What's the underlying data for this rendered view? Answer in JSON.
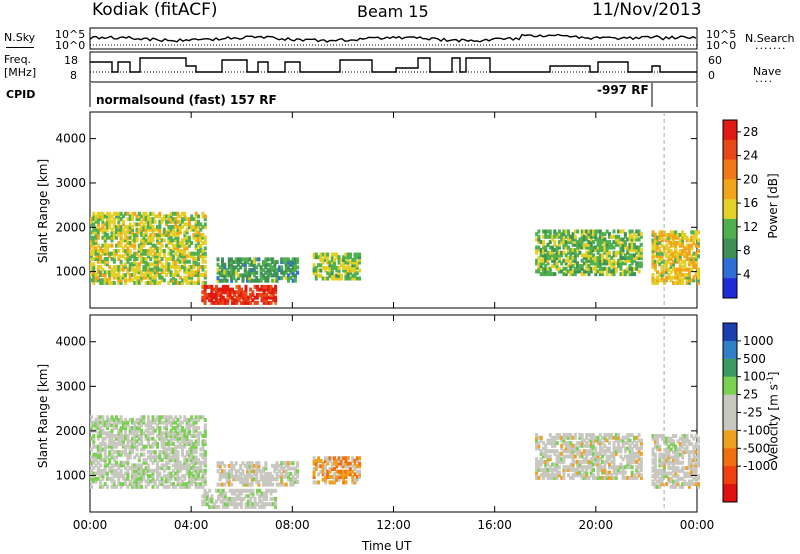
{
  "header": {
    "title": "Kodiak (fitACF)",
    "beam": "Beam 15",
    "date": "11/Nov/2013"
  },
  "top_panels": {
    "nsky_label": "N.Sky",
    "nsearch_label": "N.Search",
    "nsky_ticks": [
      "10^5",
      "10^0"
    ],
    "nsearch_ticks": [
      "10^5",
      "10^0"
    ],
    "freq_label_1": "Freq.",
    "freq_label_2": "[MHz]",
    "freq_ticks": [
      "18",
      "8"
    ],
    "nave_label": "Nave",
    "nave_ticks": [
      "60",
      "0"
    ],
    "cpid_label": "CPID",
    "cpid_text_1": "normalsound (fast) 157 RF",
    "cpid_text_2": "-997 RF"
  },
  "colors": {
    "power": [
      "#1e2bd6",
      "#2f6ed6",
      "#3f8f57",
      "#50b050",
      "#e3d12a",
      "#f2a51a",
      "#f07818",
      "#e84818",
      "#e01a10"
    ],
    "velocity": [
      "#1a3fb0",
      "#2f7fc8",
      "#3a9a60",
      "#7ad050",
      "#c8c8c0",
      "#c8c8c0",
      "#f0a020",
      "#f07010",
      "#f04010",
      "#e01010"
    ]
  },
  "chart_data": [
    {
      "type": "heatmap",
      "title": "",
      "xlabel": "Time UT",
      "ylabel": "Slant Range [km]",
      "xlim": [
        "00:00",
        "24:00"
      ],
      "ylim": [
        180,
        4600
      ],
      "x_ticks": [
        "00:00",
        "04:00",
        "08:00",
        "12:00",
        "16:00",
        "20:00",
        "00:00"
      ],
      "y_ticks": [
        "1000",
        "2000",
        "3000",
        "4000"
      ],
      "colorbar": {
        "label": "Power [dB]",
        "ticks": [
          "4",
          "8",
          "12",
          "16",
          "20",
          "24",
          "28"
        ],
        "range": [
          0,
          30
        ]
      },
      "regions": [
        {
          "t0": 0.0,
          "t1": 4.5,
          "r0": 700,
          "r1": 2300,
          "value": 14
        },
        {
          "t0": 4.4,
          "t1": 7.3,
          "r0": 250,
          "r1": 650,
          "value": 27
        },
        {
          "t0": 5.0,
          "t1": 8.2,
          "r0": 750,
          "r1": 1250,
          "value": 10
        },
        {
          "t0": 8.8,
          "t1": 10.6,
          "r0": 800,
          "r1": 1400,
          "value": 13
        },
        {
          "t0": 17.6,
          "t1": 21.8,
          "r0": 900,
          "r1": 1900,
          "value": 12
        },
        {
          "t0": 22.2,
          "t1": 24.0,
          "r0": 700,
          "r1": 1900,
          "value": 16
        }
      ]
    },
    {
      "type": "heatmap",
      "title": "",
      "xlabel": "Time UT",
      "ylabel": "Slant Range [km]",
      "xlim": [
        "00:00",
        "24:00"
      ],
      "ylim": [
        180,
        4600
      ],
      "x_ticks": [
        "00:00",
        "04:00",
        "08:00",
        "12:00",
        "16:00",
        "20:00",
        "00:00"
      ],
      "y_ticks": [
        "1000",
        "2000",
        "3000",
        "4000"
      ],
      "colorbar": {
        "label": "Velocity [m s^-1]",
        "ticks": [
          "1000",
          "500",
          "100",
          "25",
          "-25",
          "-100",
          "-500",
          "-1000"
        ],
        "range": [
          -1000,
          1000
        ]
      },
      "regions": [
        {
          "t0": 0.0,
          "t1": 4.5,
          "r0": 700,
          "r1": 2300,
          "value": 100
        },
        {
          "t0": 4.4,
          "t1": 7.3,
          "r0": 250,
          "r1": 650,
          "value": 50
        },
        {
          "t0": 5.0,
          "t1": 8.2,
          "r0": 750,
          "r1": 1250,
          "value": 0
        },
        {
          "t0": 8.8,
          "t1": 10.6,
          "r0": 800,
          "r1": 1400,
          "value": -300
        },
        {
          "t0": 17.6,
          "t1": 21.8,
          "r0": 900,
          "r1": 1900,
          "value": 0
        },
        {
          "t0": 22.2,
          "t1": 24.0,
          "r0": 700,
          "r1": 1900,
          "value": 0
        }
      ]
    }
  ]
}
